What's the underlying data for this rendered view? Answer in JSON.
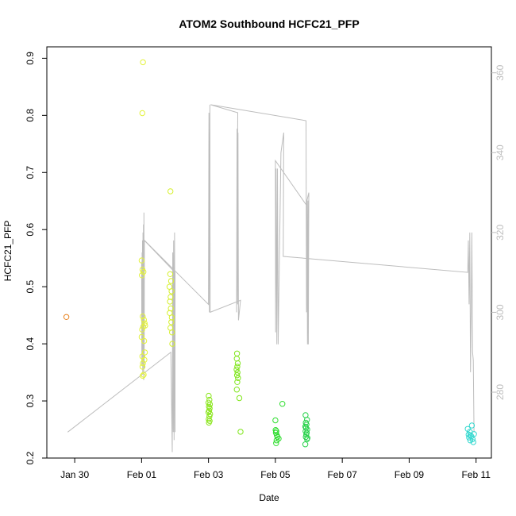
{
  "chart_data": {
    "type": "scatter",
    "title": "ATOM2 Southbound HCFC21_PFP",
    "xlabel": "Date",
    "ylabel": "HCFC21_PFP",
    "x_ticks": [
      "Jan 30",
      "Feb 01",
      "Feb 03",
      "Feb 05",
      "Feb 07",
      "Feb 09",
      "Feb 11"
    ],
    "y_ticks": [
      0.2,
      0.3,
      0.4,
      0.5,
      0.6,
      0.7,
      0.8,
      0.9
    ],
    "y2_ticks": [
      280,
      300,
      320,
      340,
      360
    ],
    "xlim": [
      "2017-01-29T04:00",
      "2017-02-11T11:00"
    ],
    "ylim": [
      0.2,
      0.92
    ],
    "y2lim": [
      263.5,
      366.5
    ],
    "grid": false,
    "points": [
      {
        "x": "2017-01-29T18:00",
        "y": 0.447,
        "color": "#e8821e"
      },
      {
        "x": "2017-02-01T01:00",
        "y": 0.893,
        "color": "#e3f23b"
      },
      {
        "x": "2017-02-01T00:30",
        "y": 0.804,
        "color": "#e3f23b"
      },
      {
        "x": "2017-02-01T00:00",
        "y": 0.546,
        "color": "#e3f23b"
      },
      {
        "x": "2017-02-01T00:40",
        "y": 0.53,
        "color": "#e3f23b"
      },
      {
        "x": "2017-02-01T01:20",
        "y": 0.526,
        "color": "#e3f23b"
      },
      {
        "x": "2017-02-01T00:10",
        "y": 0.52,
        "color": "#e3f23b"
      },
      {
        "x": "2017-02-01T00:50",
        "y": 0.448,
        "color": "#e3f23b"
      },
      {
        "x": "2017-02-01T01:40",
        "y": 0.442,
        "color": "#e3f23b"
      },
      {
        "x": "2017-02-01T02:10",
        "y": 0.436,
        "color": "#e3f23b"
      },
      {
        "x": "2017-02-01T01:10",
        "y": 0.43,
        "color": "#e3f23b"
      },
      {
        "x": "2017-02-01T00:20",
        "y": 0.425,
        "color": "#e3f23b"
      },
      {
        "x": "2017-02-01T02:30",
        "y": 0.432,
        "color": "#e3f23b"
      },
      {
        "x": "2017-02-01T01:50",
        "y": 0.405,
        "color": "#e3f23b"
      },
      {
        "x": "2017-02-01T00:00",
        "y": 0.412,
        "color": "#e3f23b"
      },
      {
        "x": "2017-02-01T02:20",
        "y": 0.385,
        "color": "#e3f23b"
      },
      {
        "x": "2017-02-01T00:30",
        "y": 0.378,
        "color": "#e3f23b"
      },
      {
        "x": "2017-02-01T02:00",
        "y": 0.372,
        "color": "#e3f23b"
      },
      {
        "x": "2017-02-01T01:00",
        "y": 0.366,
        "color": "#e3f23b"
      },
      {
        "x": "2017-02-01T00:40",
        "y": 0.36,
        "color": "#e3f23b"
      },
      {
        "x": "2017-02-01T01:30",
        "y": 0.346,
        "color": "#e3f23b"
      },
      {
        "x": "2017-02-01T00:50",
        "y": 0.344,
        "color": "#e3f23b"
      },
      {
        "x": "2017-02-01T20:40",
        "y": 0.667,
        "color": "#d6f02e"
      },
      {
        "x": "2017-02-01T20:30",
        "y": 0.522,
        "color": "#d6f02e"
      },
      {
        "x": "2017-02-01T21:10",
        "y": 0.51,
        "color": "#d6f02e"
      },
      {
        "x": "2017-02-01T20:00",
        "y": 0.5,
        "color": "#d6f02e"
      },
      {
        "x": "2017-02-01T21:30",
        "y": 0.492,
        "color": "#d6f02e"
      },
      {
        "x": "2017-02-01T20:50",
        "y": 0.482,
        "color": "#d6f02e"
      },
      {
        "x": "2017-02-01T20:20",
        "y": 0.474,
        "color": "#d6f02e"
      },
      {
        "x": "2017-02-01T21:00",
        "y": 0.462,
        "color": "#d6f02e"
      },
      {
        "x": "2017-02-01T20:10",
        "y": 0.454,
        "color": "#d6f02e"
      },
      {
        "x": "2017-02-01T21:40",
        "y": 0.446,
        "color": "#d6f02e"
      },
      {
        "x": "2017-02-01T21:20",
        "y": 0.438,
        "color": "#d6f02e"
      },
      {
        "x": "2017-02-01T20:40",
        "y": 0.428,
        "color": "#d6f02e"
      },
      {
        "x": "2017-02-01T21:50",
        "y": 0.42,
        "color": "#d6f02e"
      },
      {
        "x": "2017-02-01T22:00",
        "y": 0.4,
        "color": "#d6f02e"
      },
      {
        "x": "2017-02-03T00:10",
        "y": 0.309,
        "color": "#8ce61f"
      },
      {
        "x": "2017-02-03T00:40",
        "y": 0.302,
        "color": "#8ce61f"
      },
      {
        "x": "2017-02-03T00:00",
        "y": 0.297,
        "color": "#8ce61f"
      },
      {
        "x": "2017-02-03T01:00",
        "y": 0.294,
        "color": "#8ce61f"
      },
      {
        "x": "2017-02-03T00:20",
        "y": 0.29,
        "color": "#8ce61f"
      },
      {
        "x": "2017-02-03T00:50",
        "y": 0.287,
        "color": "#8ce61f"
      },
      {
        "x": "2017-02-03T00:30",
        "y": 0.283,
        "color": "#8ce61f"
      },
      {
        "x": "2017-02-03T00:00",
        "y": 0.28,
        "color": "#8ce61f"
      },
      {
        "x": "2017-02-03T01:10",
        "y": 0.277,
        "color": "#8ce61f"
      },
      {
        "x": "2017-02-03T00:40",
        "y": 0.273,
        "color": "#8ce61f"
      },
      {
        "x": "2017-02-03T00:10",
        "y": 0.268,
        "color": "#8ce61f"
      },
      {
        "x": "2017-02-03T00:50",
        "y": 0.265,
        "color": "#8ce61f"
      },
      {
        "x": "2017-02-03T00:20",
        "y": 0.262,
        "color": "#8ce61f"
      },
      {
        "x": "2017-02-03T20:30",
        "y": 0.383,
        "color": "#7fe61a"
      },
      {
        "x": "2017-02-03T20:20",
        "y": 0.374,
        "color": "#7fe61a"
      },
      {
        "x": "2017-02-03T21:00",
        "y": 0.366,
        "color": "#7fe61a"
      },
      {
        "x": "2017-02-03T20:40",
        "y": 0.36,
        "color": "#7fe61a"
      },
      {
        "x": "2017-02-03T20:10",
        "y": 0.355,
        "color": "#7fe61a"
      },
      {
        "x": "2017-02-03T20:50",
        "y": 0.35,
        "color": "#7fe61a"
      },
      {
        "x": "2017-02-03T20:30",
        "y": 0.345,
        "color": "#7fe61a"
      },
      {
        "x": "2017-02-03T21:10",
        "y": 0.34,
        "color": "#7fe61a"
      },
      {
        "x": "2017-02-03T20:40",
        "y": 0.333,
        "color": "#7fe61a"
      },
      {
        "x": "2017-02-03T20:20",
        "y": 0.32,
        "color": "#7fe61a"
      },
      {
        "x": "2017-02-03T22:10",
        "y": 0.305,
        "color": "#7fe61a"
      },
      {
        "x": "2017-02-03T23:00",
        "y": 0.246,
        "color": "#7fe61a"
      },
      {
        "x": "2017-02-05T00:00",
        "y": 0.266,
        "color": "#2fdd2f"
      },
      {
        "x": "2017-02-05T00:10",
        "y": 0.249,
        "color": "#2fdd2f"
      },
      {
        "x": "2017-02-05T00:40",
        "y": 0.247,
        "color": "#2fdd2f"
      },
      {
        "x": "2017-02-05T00:20",
        "y": 0.244,
        "color": "#2fdd2f"
      },
      {
        "x": "2017-02-05T01:00",
        "y": 0.24,
        "color": "#2fdd2f"
      },
      {
        "x": "2017-02-05T01:30",
        "y": 0.237,
        "color": "#2fdd2f"
      },
      {
        "x": "2017-02-05T02:20",
        "y": 0.234,
        "color": "#2fdd2f"
      },
      {
        "x": "2017-02-05T00:50",
        "y": 0.231,
        "color": "#2fdd2f"
      },
      {
        "x": "2017-02-05T00:30",
        "y": 0.226,
        "color": "#2fdd2f"
      },
      {
        "x": "2017-02-05T05:00",
        "y": 0.295,
        "color": "#2fdd2f"
      },
      {
        "x": "2017-02-05T21:40",
        "y": 0.275,
        "color": "#27d24a"
      },
      {
        "x": "2017-02-05T22:40",
        "y": 0.267,
        "color": "#27d24a"
      },
      {
        "x": "2017-02-05T21:50",
        "y": 0.262,
        "color": "#27d24a"
      },
      {
        "x": "2017-02-05T22:20",
        "y": 0.259,
        "color": "#27d24a"
      },
      {
        "x": "2017-02-05T21:30",
        "y": 0.255,
        "color": "#27d24a"
      },
      {
        "x": "2017-02-05T22:00",
        "y": 0.253,
        "color": "#27d24a"
      },
      {
        "x": "2017-02-05T22:50",
        "y": 0.25,
        "color": "#27d24a"
      },
      {
        "x": "2017-02-05T21:40",
        "y": 0.247,
        "color": "#27d24a"
      },
      {
        "x": "2017-02-05T22:30",
        "y": 0.244,
        "color": "#27d24a"
      },
      {
        "x": "2017-02-05T22:10",
        "y": 0.241,
        "color": "#27d24a"
      },
      {
        "x": "2017-02-05T21:50",
        "y": 0.237,
        "color": "#27d24a"
      },
      {
        "x": "2017-02-05T23:00",
        "y": 0.235,
        "color": "#27d24a"
      },
      {
        "x": "2017-02-05T22:40",
        "y": 0.233,
        "color": "#27d24a"
      },
      {
        "x": "2017-02-05T21:30",
        "y": 0.224,
        "color": "#27d24a"
      },
      {
        "x": "2017-02-10T18:00",
        "y": 0.251,
        "color": "#33d8cf"
      },
      {
        "x": "2017-02-10T19:30",
        "y": 0.246,
        "color": "#33d8cf"
      },
      {
        "x": "2017-02-10T21:00",
        "y": 0.257,
        "color": "#33d8cf"
      },
      {
        "x": "2017-02-10T18:40",
        "y": 0.241,
        "color": "#33d8cf"
      },
      {
        "x": "2017-02-10T20:00",
        "y": 0.24,
        "color": "#33d8cf"
      },
      {
        "x": "2017-02-10T22:30",
        "y": 0.242,
        "color": "#33d8cf"
      },
      {
        "x": "2017-02-10T19:00",
        "y": 0.236,
        "color": "#33d8cf"
      },
      {
        "x": "2017-02-10T20:40",
        "y": 0.238,
        "color": "#33d8cf"
      },
      {
        "x": "2017-02-10T21:30",
        "y": 0.233,
        "color": "#33d8cf"
      },
      {
        "x": "2017-02-10T19:50",
        "y": 0.231,
        "color": "#33d8cf"
      },
      {
        "x": "2017-02-10T22:00",
        "y": 0.228,
        "color": "#33d8cf"
      }
    ],
    "secondary_trace": {
      "color": "#bdbdbd",
      "axis": "right",
      "points": [
        [
          "2017-01-29T19:00",
          270
        ],
        [
          "2017-02-01T21:00",
          290
        ],
        [
          "2017-02-01T22:00",
          265
        ],
        [
          "2017-02-01T22:20",
          315
        ],
        [
          "2017-02-01T22:40",
          270
        ],
        [
          "2017-02-01T23:00",
          318
        ],
        [
          "2017-02-01T23:20",
          268
        ],
        [
          "2017-02-01T23:40",
          320
        ],
        [
          "2017-02-02T00:00",
          270
        ],
        [
          "2017-02-02T00:00",
          310
        ],
        [
          "2017-02-01T02:00",
          318
        ],
        [
          "2017-02-01T01:50",
          286
        ],
        [
          "2017-02-01T01:40",
          325
        ],
        [
          "2017-02-01T01:30",
          283
        ],
        [
          "2017-02-01T01:20",
          322
        ],
        [
          "2017-02-01T01:10",
          288
        ],
        [
          "2017-02-01T01:00",
          320
        ],
        [
          "2017-02-01T00:50",
          285
        ],
        [
          "2017-02-01T00:40",
          318
        ],
        [
          "2017-02-01T00:30",
          290
        ],
        [
          "2017-02-01T00:20",
          315
        ],
        [
          "2017-02-01T00:10",
          287
        ],
        [
          "2017-02-01T00:00",
          312
        ],
        [
          "2017-02-01T02:10",
          318
        ],
        [
          "2017-02-03T00:00",
          302
        ],
        [
          "2017-02-03T00:20",
          350
        ],
        [
          "2017-02-03T00:40",
          300
        ],
        [
          "2017-02-03T01:00",
          352
        ],
        [
          "2017-02-03T01:10",
          300
        ],
        [
          "2017-02-03T23:00",
          303
        ],
        [
          "2017-02-03T21:30",
          298
        ],
        [
          "2017-02-03T21:10",
          345
        ],
        [
          "2017-02-03T20:50",
          302
        ],
        [
          "2017-02-03T20:30",
          346
        ],
        [
          "2017-02-03T20:10",
          300
        ],
        [
          "2017-02-03T21:00",
          350
        ],
        [
          "2017-02-03T01:30",
          352
        ],
        [
          "2017-02-05T22:00",
          348
        ],
        [
          "2017-02-05T22:20",
          300
        ],
        [
          "2017-02-05T22:40",
          328
        ],
        [
          "2017-02-05T23:00",
          292
        ],
        [
          "2017-02-05T23:20",
          328
        ],
        [
          "2017-02-05T23:40",
          292
        ],
        [
          "2017-02-06T00:00",
          330
        ],
        [
          "2017-02-05T22:00",
          327
        ],
        [
          "2017-02-05T00:00",
          338
        ],
        [
          "2017-02-05T00:10",
          295
        ],
        [
          "2017-02-05T00:30",
          336
        ],
        [
          "2017-02-05T01:00",
          292
        ],
        [
          "2017-02-05T01:30",
          336
        ],
        [
          "2017-02-05T02:00",
          292
        ],
        [
          "2017-02-05T04:00",
          340
        ],
        [
          "2017-02-05T06:00",
          345
        ],
        [
          "2017-02-05T05:40",
          314
        ],
        [
          "2017-02-10T18:00",
          310
        ],
        [
          "2017-02-10T18:30",
          318
        ],
        [
          "2017-02-10T19:00",
          302
        ],
        [
          "2017-02-10T19:30",
          320
        ],
        [
          "2017-02-10T20:00",
          285
        ],
        [
          "2017-02-10T20:30",
          300
        ],
        [
          "2017-02-10T21:00",
          320
        ],
        [
          "2017-02-10T21:30",
          290
        ],
        [
          "2017-02-10T22:00",
          288
        ],
        [
          "2017-02-10T22:30",
          270
        ]
      ]
    }
  }
}
